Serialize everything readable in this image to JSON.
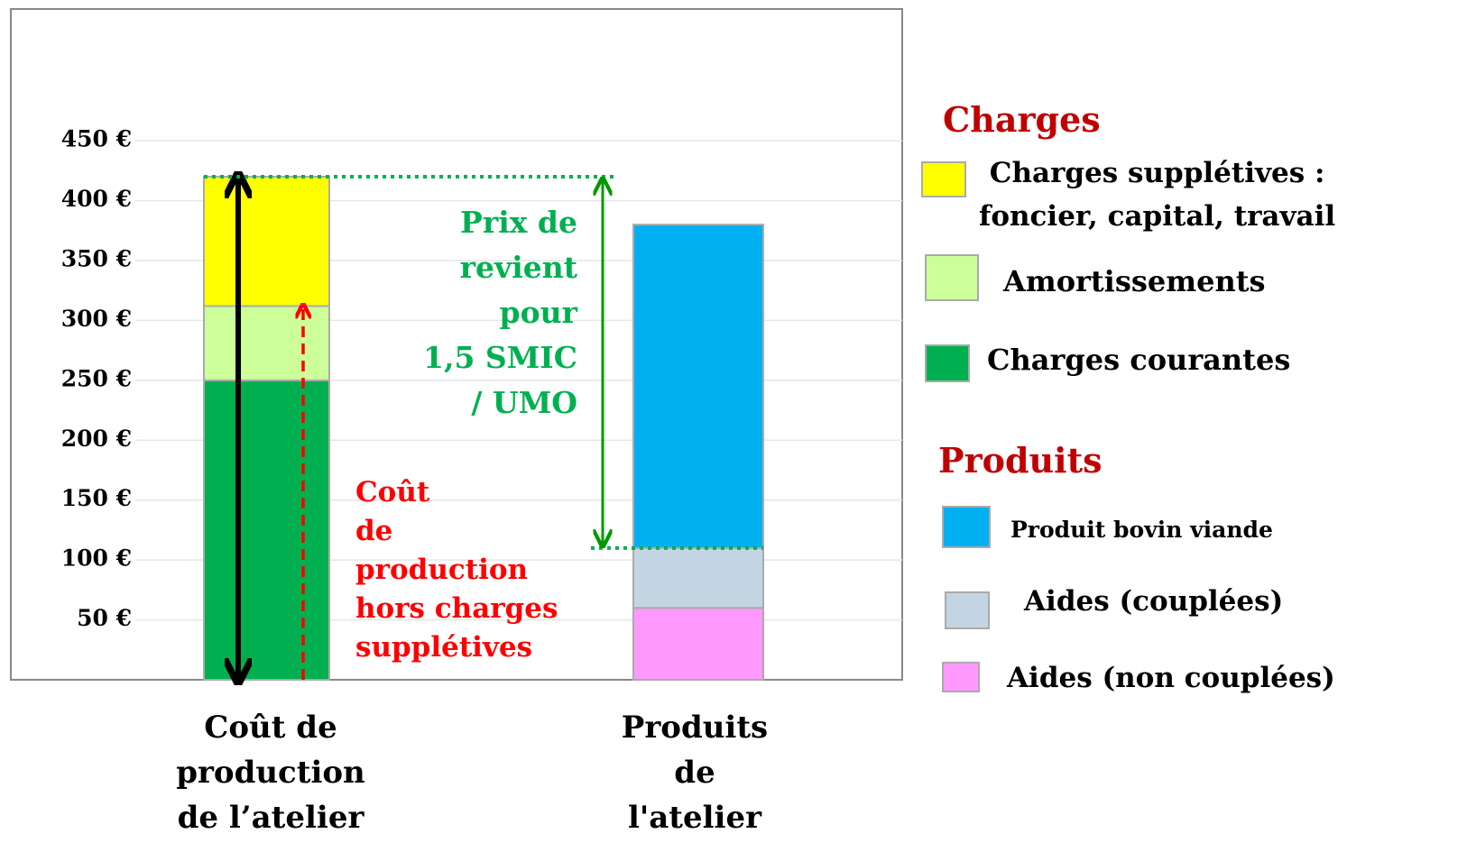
{
  "chart_data": {
    "type": "stacked_bar",
    "categories": [
      "Coût de\nproduction\nde l’atelier",
      "Produits\nde\nl'atelier"
    ],
    "series": [
      {
        "name": "Charges courantes",
        "color": "#00b050",
        "values": [
          250,
          null
        ]
      },
      {
        "name": "Amortissements",
        "color": "#ccff99",
        "values": [
          62,
          null
        ]
      },
      {
        "name": "Charges supplétives :\nfoncier, capital, travail",
        "color": "#ffff00",
        "values": [
          108,
          null
        ]
      },
      {
        "name": "Aides (non couplées)",
        "color": "#ff99ff",
        "values": [
          null,
          60
        ]
      },
      {
        "name": "Aides (couplées)",
        "color": "#c3d5e2",
        "values": [
          null,
          50
        ]
      },
      {
        "name": "Produit bovin viande",
        "color": "#00b0f0",
        "values": [
          null,
          270
        ]
      }
    ],
    "legend_groups": [
      "Charges",
      "Produits"
    ],
    "annotations": [
      "Prix de\nrevient\npour\n1,5 SMIC\n/ UMO",
      "Coût\nde\nproduction\nhors charges\nsupplétives"
    ],
    "ylim": [
      0,
      560
    ],
    "yticks": [
      {
        "value": 50,
        "label": "50 €"
      },
      {
        "value": 100,
        "label": "100 €"
      },
      {
        "value": 150,
        "label": "150 €"
      },
      {
        "value": 200,
        "label": "200 €"
      },
      {
        "value": 250,
        "label": "250 €"
      },
      {
        "value": 300,
        "label": "300 €"
      },
      {
        "value": 350,
        "label": "350 €"
      },
      {
        "value": 400,
        "label": "400 €"
      },
      {
        "value": 450,
        "label": "450 €"
      }
    ],
    "grid": true
  }
}
